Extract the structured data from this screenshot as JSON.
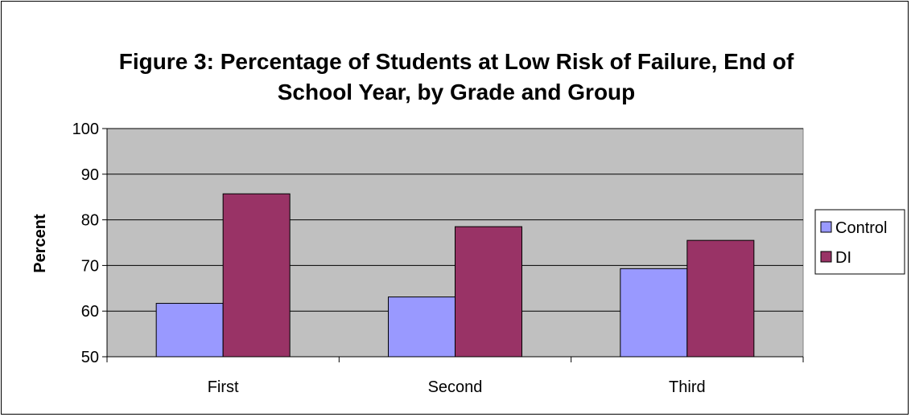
{
  "chart_data": {
    "type": "bar",
    "title_lines": [
      "Figure 3: Percentage of Students at Low Risk of Failure, End of",
      "School Year, by Grade and Group"
    ],
    "xlabel": "",
    "ylabel": "Percent",
    "categories": [
      "First",
      "Second",
      "Third"
    ],
    "series": [
      {
        "name": "Control",
        "values": [
          61.7,
          63.1,
          69.3
        ],
        "color": "#9999ff"
      },
      {
        "name": "DI",
        "values": [
          85.7,
          78.5,
          75.5
        ],
        "color": "#993366"
      }
    ],
    "ylim": [
      50,
      100
    ],
    "yticks": [
      50,
      60,
      70,
      80,
      90,
      100
    ],
    "grid": true,
    "plot_background": "#c0c0c0",
    "legend_position": "right"
  }
}
